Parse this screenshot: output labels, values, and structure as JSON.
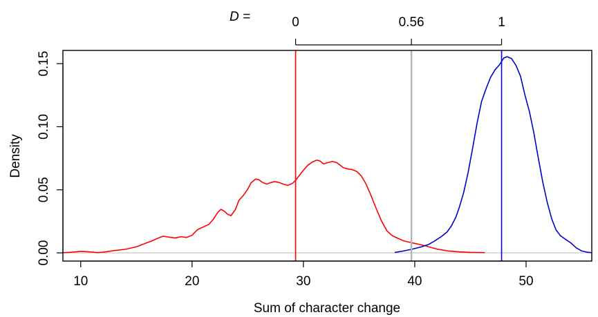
{
  "chart_data": {
    "type": "line",
    "xlabel": "Sum of character change",
    "ylabel": "Density",
    "xlim": [
      8.4,
      55.9
    ],
    "ylim": [
      -0.0065,
      0.1605
    ],
    "x_ticks": [
      "10",
      "20",
      "30",
      "40",
      "50"
    ],
    "x_tick_values": [
      10,
      20,
      30,
      40,
      50
    ],
    "y_ticks": [
      "0.00",
      "0.05",
      "0.10",
      "0.15"
    ],
    "y_tick_values": [
      0,
      0.05,
      0.1,
      0.15
    ],
    "series": [
      {
        "color": "#ff0000",
        "x": [
          8.4,
          9,
          10,
          10.8,
          11.5,
          12,
          13,
          14,
          15,
          15.8,
          16.4,
          16.9,
          17.4,
          17.9,
          18.5,
          19,
          19.5,
          20,
          20.5,
          21,
          21.5,
          21.9,
          22.3,
          22.6,
          22.9,
          23.2,
          23.5,
          23.9,
          24.2,
          24.6,
          25,
          25.3,
          25.7,
          26,
          26.3,
          26.7,
          27,
          27.4,
          27.8,
          28.2,
          28.6,
          29,
          29.3,
          29.6,
          30,
          30.4,
          30.8,
          31.2,
          31.5,
          31.8,
          32.2,
          32.6,
          33,
          33.3,
          33.6,
          34,
          34.4,
          34.8,
          35.2,
          35.6,
          36,
          36.5,
          37,
          37.5,
          38,
          38.5,
          39,
          39.5,
          40,
          40.5,
          41,
          41.5,
          42,
          43,
          44,
          45,
          46.3
        ],
        "y": [
          0.0002,
          0.0004,
          0.0012,
          0.0008,
          0.0002,
          0.0005,
          0.0018,
          0.0028,
          0.0048,
          0.0075,
          0.0095,
          0.0115,
          0.0132,
          0.0125,
          0.0118,
          0.0128,
          0.0122,
          0.014,
          0.0185,
          0.0205,
          0.0225,
          0.0265,
          0.032,
          0.0345,
          0.033,
          0.0305,
          0.0295,
          0.0345,
          0.0415,
          0.0455,
          0.0505,
          0.0555,
          0.0585,
          0.058,
          0.056,
          0.0545,
          0.0555,
          0.0565,
          0.0558,
          0.0545,
          0.0535,
          0.055,
          0.0575,
          0.061,
          0.0655,
          0.0695,
          0.072,
          0.0735,
          0.0728,
          0.0705,
          0.0715,
          0.0725,
          0.0715,
          0.0695,
          0.0675,
          0.0665,
          0.066,
          0.0645,
          0.061,
          0.055,
          0.047,
          0.036,
          0.0255,
          0.0175,
          0.0135,
          0.0115,
          0.0095,
          0.0085,
          0.0075,
          0.0065,
          0.0055,
          0.0042,
          0.003,
          0.0015,
          0.0008,
          0.0004,
          0.0002
        ]
      },
      {
        "color": "#0000cc",
        "x": [
          38.2,
          39,
          39.8,
          40.5,
          41.2,
          41.8,
          42.4,
          42.9,
          43.3,
          43.7,
          44,
          44.4,
          44.8,
          45.2,
          45.6,
          46,
          46.4,
          46.8,
          47.2,
          47.6,
          48,
          48.3,
          48.7,
          49.1,
          49.5,
          49.9,
          50.3,
          50.7,
          51.1,
          51.5,
          51.9,
          52.3,
          52.7,
          53.1,
          53.5,
          54,
          54.5,
          55,
          55.5,
          55.9
        ],
        "y": [
          0.0003,
          0.0015,
          0.003,
          0.0045,
          0.0065,
          0.0095,
          0.013,
          0.0165,
          0.0215,
          0.0285,
          0.036,
          0.048,
          0.064,
          0.083,
          0.103,
          0.12,
          0.13,
          0.139,
          0.145,
          0.149,
          0.1545,
          0.1555,
          0.154,
          0.1485,
          0.14,
          0.125,
          0.112,
          0.095,
          0.075,
          0.056,
          0.04,
          0.027,
          0.018,
          0.0135,
          0.011,
          0.008,
          0.004,
          0.0015,
          0.0005,
          0.0002
        ]
      }
    ],
    "vlines": [
      {
        "x": 29.3,
        "color": "#ff0000"
      },
      {
        "x": 39.7,
        "color": "#b3b3b3"
      },
      {
        "x": 47.8,
        "color": "#0000ff"
      }
    ],
    "baseline_color": "#c8c8c8",
    "top_scale": {
      "label": "D =",
      "ticks": [
        {
          "label": "0",
          "x": 29.3
        },
        {
          "label": "0.56",
          "x": 39.7
        },
        {
          "label": "1",
          "x": 47.8
        }
      ]
    }
  }
}
